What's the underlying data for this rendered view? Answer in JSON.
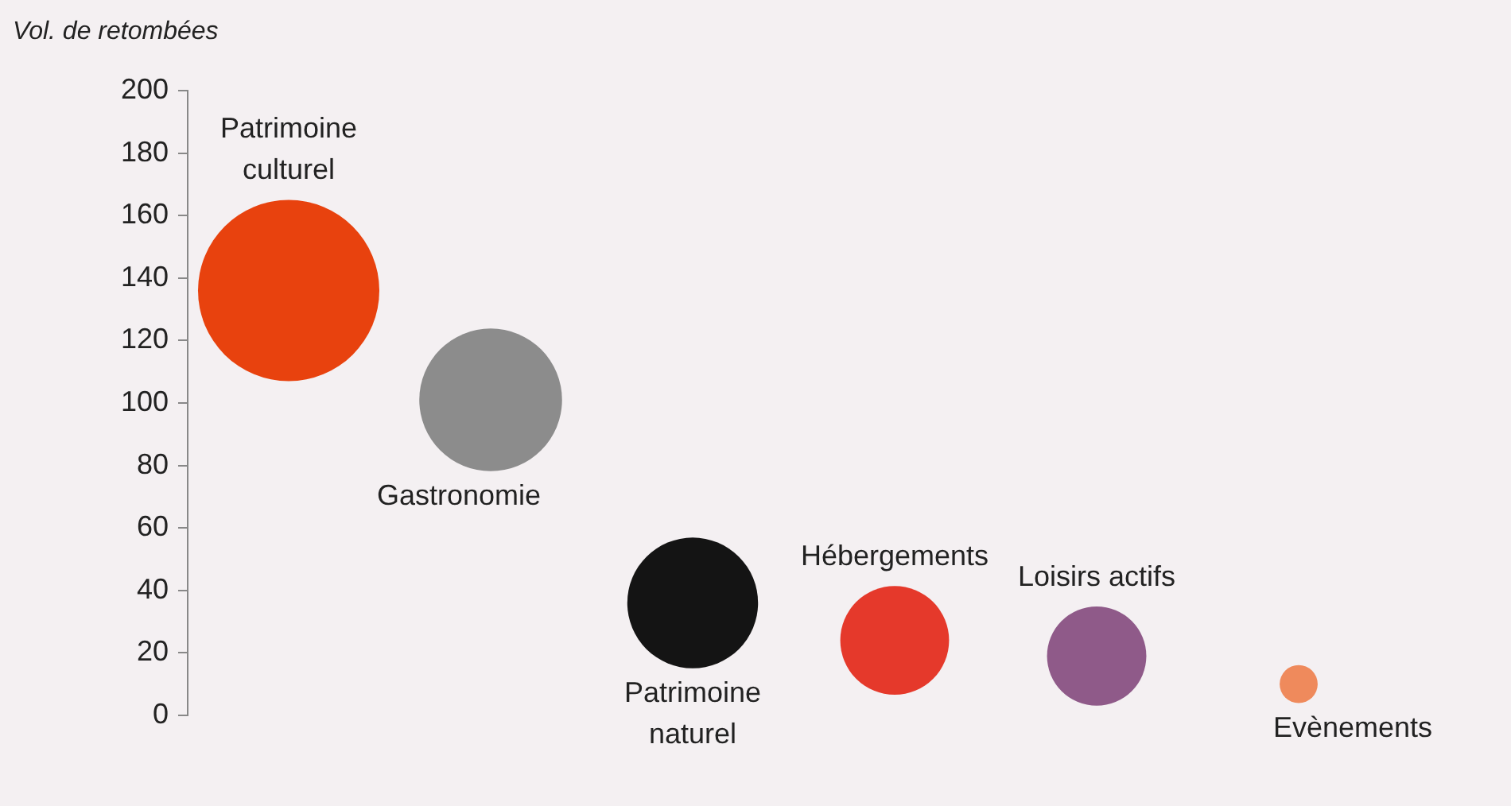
{
  "chart_data": {
    "type": "bubble",
    "ylabel": "Vol. de retombées",
    "categories": [
      "Patrimoine culturel",
      "Gastronomie",
      "Patrimoine naturel",
      "Hébergements",
      "Loisirs actifs",
      "Evènements"
    ],
    "values": [
      136,
      101,
      36,
      24,
      19,
      10
    ],
    "sizes": [
      1,
      0.62,
      0.52,
      0.36,
      0.3,
      0.044
    ],
    "colors": [
      "#e8420e",
      "#8c8c8c",
      "#141414",
      "#e5392b",
      "#8f5a89",
      "#ef8a5c"
    ],
    "ylim": [
      0,
      200
    ],
    "yticks": [
      0,
      20,
      40,
      60,
      80,
      100,
      120,
      140,
      160,
      180,
      200
    ],
    "grid": false
  }
}
